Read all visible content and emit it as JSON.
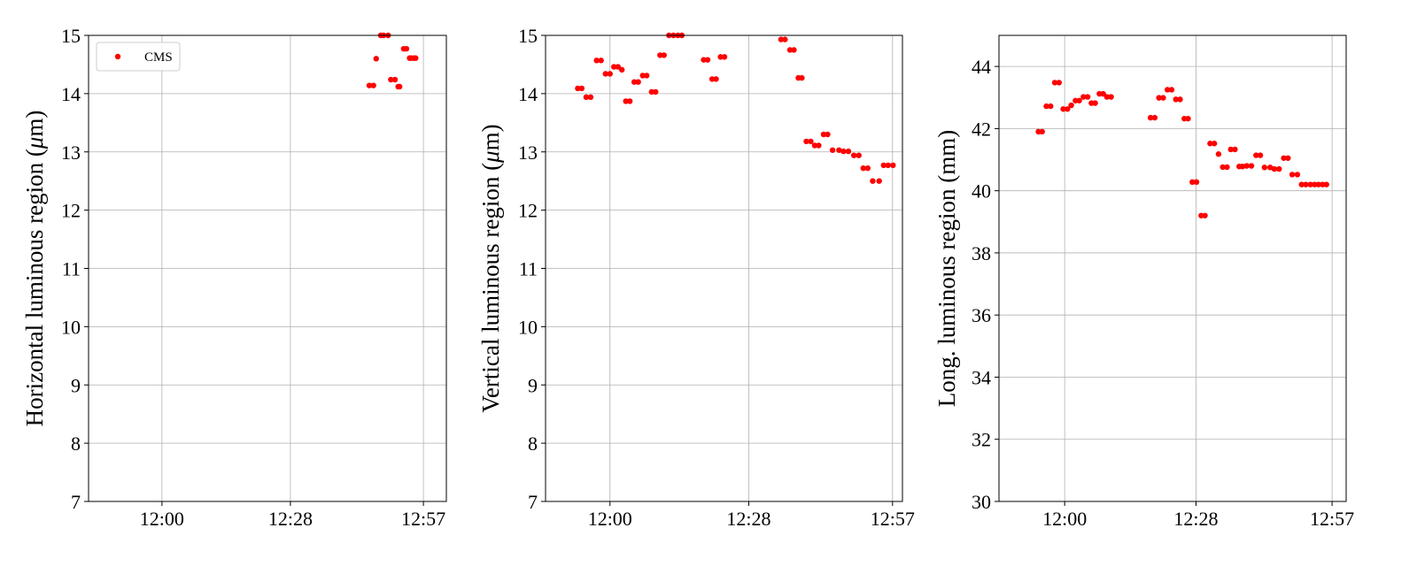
{
  "colors": {
    "points": "#ff0000",
    "grid": "#b0b0b0",
    "frame": "#000000",
    "legend_border": "#cccccc"
  },
  "chart_data": [
    {
      "type": "scatter",
      "ylabel": "Horizontal luminous region (μm)",
      "ylabel_prefix": "Horizontal luminous region (",
      "ylabel_unit_symbol": "μ",
      "ylabel_unit_rest": "m)",
      "xlabel": "",
      "xlim": [
        -16,
        62
      ],
      "ylim": [
        7,
        15
      ],
      "x_tick_values": [
        0,
        28,
        57
      ],
      "x_tick_labels": [
        "12:00",
        "12:28",
        "12:57"
      ],
      "y_ticks": [
        7,
        8,
        9,
        10,
        11,
        12,
        13,
        14,
        15
      ],
      "y_tick_labels": [
        "7",
        "8",
        "9",
        "10",
        "11",
        "12",
        "13",
        "14",
        "15"
      ],
      "grid": true,
      "legend": {
        "position": "top-left",
        "entries": [
          "CMS"
        ]
      },
      "series": [
        {
          "name": "CMS",
          "x": [
            45.2,
            46.1,
            46.7,
            47.7,
            48.3,
            49.3,
            49.9,
            50.8,
            51.5,
            51.8,
            52.7,
            53.3,
            54.0,
            54.3,
            54.9,
            55.3
          ],
          "y": [
            14.14,
            14.14,
            14.6,
            15.0,
            15.0,
            15.0,
            14.24,
            14.24,
            14.12,
            14.12,
            14.77,
            14.77,
            14.61,
            14.61,
            14.61,
            14.61
          ]
        }
      ]
    },
    {
      "type": "scatter",
      "ylabel": "Vertical luminous region (μm)",
      "ylabel_prefix": "Vertical luminous region (",
      "ylabel_unit_symbol": "μ",
      "ylabel_unit_rest": "m)",
      "xlabel": "",
      "xlim": [
        -13,
        59
      ],
      "ylim": [
        7,
        15
      ],
      "x_tick_values": [
        0,
        28,
        57
      ],
      "x_tick_labels": [
        "12:00",
        "12:28",
        "12:57"
      ],
      "y_ticks": [
        7,
        8,
        9,
        10,
        11,
        12,
        13,
        14,
        15
      ],
      "y_tick_labels": [
        "7",
        "8",
        "9",
        "10",
        "11",
        "12",
        "13",
        "14",
        "15"
      ],
      "grid": true,
      "series": [
        {
          "name": "",
          "x": [
            -6.5,
            -5.7,
            -4.8,
            -3.9,
            -2.7,
            -1.8,
            -0.9,
            0.0,
            0.8,
            1.6,
            2.4,
            3.2,
            4.0,
            4.9,
            5.7,
            6.6,
            7.4,
            8.4,
            9.2,
            10.1,
            10.9,
            11.9,
            12.8,
            13.7,
            14.5,
            18.9,
            19.7,
            20.6,
            21.4,
            22.3,
            23.1,
            34.5,
            35.3,
            36.3,
            37.1,
            38.0,
            38.7,
            39.6,
            40.5,
            41.3,
            42.1,
            43.1,
            43.9,
            44.9,
            46.2,
            47.1,
            48.1,
            49.2,
            50.2,
            51.1,
            52.0,
            53.0,
            54.3,
            55.2,
            56.1,
            57.1
          ],
          "y": [
            14.09,
            14.09,
            13.94,
            13.94,
            14.57,
            14.57,
            14.34,
            14.34,
            14.46,
            14.46,
            14.41,
            13.87,
            13.87,
            14.2,
            14.2,
            14.31,
            14.31,
            14.03,
            14.03,
            14.66,
            14.66,
            15.0,
            15.0,
            15.0,
            15.0,
            14.58,
            14.58,
            14.25,
            14.25,
            14.63,
            14.63,
            14.93,
            14.93,
            14.75,
            14.75,
            14.27,
            14.27,
            13.18,
            13.18,
            13.11,
            13.11,
            13.3,
            13.3,
            13.03,
            13.03,
            13.01,
            13.01,
            12.94,
            12.94,
            12.72,
            12.72,
            12.5,
            12.5,
            12.77,
            12.77,
            12.77
          ]
        }
      ]
    },
    {
      "type": "scatter",
      "ylabel": "Long. luminous region (mm)",
      "xlabel": "",
      "xlim": [
        -14,
        60
      ],
      "ylim": [
        30,
        45
      ],
      "x_tick_values": [
        0,
        28,
        57
      ],
      "x_tick_labels": [
        "12:00",
        "12:28",
        "12:57"
      ],
      "y_ticks": [
        30,
        32,
        34,
        36,
        38,
        40,
        42,
        44
      ],
      "y_tick_labels": [
        "30",
        "32",
        "34",
        "36",
        "38",
        "40",
        "42",
        "44"
      ],
      "grid": true,
      "series": [
        {
          "name": "",
          "x": [
            -5.6,
            -4.8,
            -3.9,
            -3.0,
            -2.1,
            -1.2,
            -0.3,
            0.6,
            1.4,
            2.3,
            3.1,
            4.0,
            4.9,
            5.7,
            6.5,
            7.4,
            8.2,
            9.0,
            9.9,
            18.3,
            19.2,
            20.1,
            21.0,
            21.9,
            22.8,
            23.7,
            24.6,
            25.5,
            26.3,
            27.2,
            28.1,
            29.1,
            29.9,
            31.0,
            31.9,
            32.8,
            33.7,
            34.6,
            35.4,
            36.3,
            37.2,
            37.9,
            38.8,
            39.8,
            40.8,
            41.7,
            42.6,
            43.8,
            44.7,
            45.7,
            46.7,
            47.6,
            48.5,
            49.6,
            50.5,
            51.4,
            52.4,
            53.3,
            54.1,
            55.0,
            55.8
          ],
          "y": [
            41.9,
            41.9,
            42.72,
            42.72,
            43.48,
            43.48,
            42.63,
            42.63,
            42.75,
            42.9,
            42.9,
            43.02,
            43.02,
            42.82,
            42.82,
            43.12,
            43.12,
            43.02,
            43.02,
            42.35,
            42.35,
            42.99,
            42.99,
            43.25,
            43.25,
            42.94,
            42.94,
            42.32,
            42.32,
            40.28,
            40.28,
            39.2,
            39.2,
            41.52,
            41.52,
            41.18,
            40.76,
            40.76,
            41.33,
            41.33,
            40.78,
            40.78,
            40.8,
            40.8,
            41.14,
            41.14,
            40.75,
            40.75,
            40.7,
            40.7,
            41.05,
            41.05,
            40.52,
            40.52,
            40.2,
            40.2,
            40.2,
            40.2,
            40.2,
            40.2,
            40.2
          ]
        }
      ]
    }
  ]
}
